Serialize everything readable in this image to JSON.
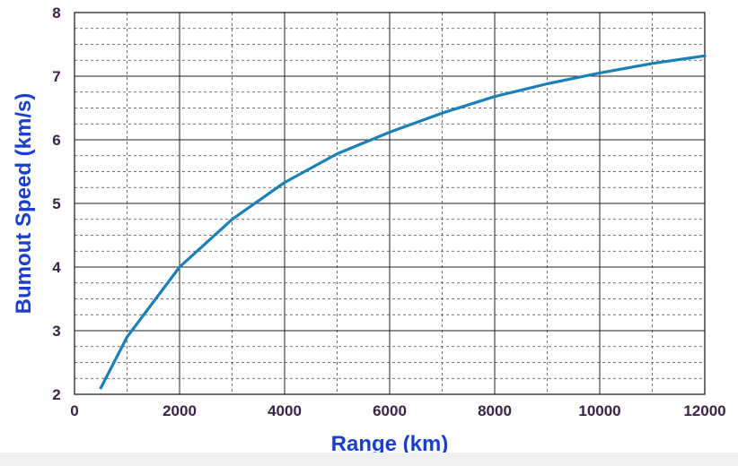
{
  "chart_data": {
    "type": "line",
    "title": "",
    "xlabel": "Range (km)",
    "ylabel": "Bumout Speed (km/s)",
    "xlim": [
      0,
      12000
    ],
    "ylim": [
      2,
      8
    ],
    "xticks": [
      0,
      2000,
      4000,
      6000,
      8000,
      10000,
      12000
    ],
    "xtick_labels": [
      "0",
      "2000",
      "4000",
      "6000",
      "8000",
      "10000",
      "12000"
    ],
    "yticks": [
      2,
      3,
      4,
      5,
      6,
      7,
      8
    ],
    "ytick_labels": [
      "2",
      "3",
      "4",
      "5",
      "6",
      "7",
      "8"
    ],
    "grid": true,
    "legend": "none",
    "series": [
      {
        "color": "#1a80b6",
        "x": [
          500,
          1000,
          2000,
          3000,
          4000,
          5000,
          6000,
          7000,
          8000,
          9000,
          10000,
          11000,
          12000
        ],
        "y": [
          2.1,
          2.9,
          4.0,
          4.75,
          5.33,
          5.78,
          6.12,
          6.42,
          6.68,
          6.88,
          7.05,
          7.2,
          7.32
        ]
      }
    ]
  }
}
